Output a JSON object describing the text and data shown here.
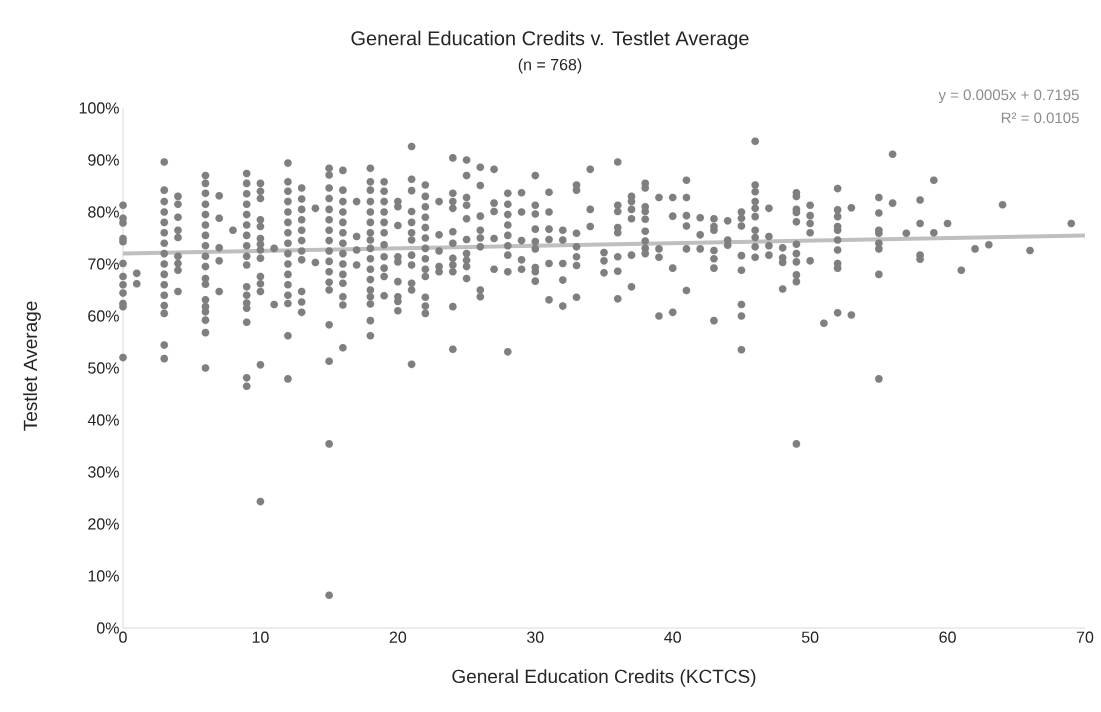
{
  "chart_data": {
    "type": "scatter",
    "title": "General Education Credits v. Testlet Average",
    "subtitle": "(n = 768)",
    "xlabel": "General Education Credits (KCTCS)",
    "ylabel": "Testlet Average",
    "annotations": [
      "y = 0.0005x + 0.7195",
      "R² = 0.0105"
    ],
    "xlim": [
      0,
      70
    ],
    "xticks": [
      0,
      10,
      20,
      30,
      40,
      50,
      60,
      70
    ],
    "ylim": [
      0,
      100
    ],
    "yticks": [
      {
        "value": 0,
        "label": "0%"
      },
      {
        "value": 10,
        "label": "10%"
      },
      {
        "value": 20,
        "label": "20%"
      },
      {
        "value": 30,
        "label": "30%"
      },
      {
        "value": 40,
        "label": "40%"
      },
      {
        "value": 50,
        "label": "50%"
      },
      {
        "value": 60,
        "label": "60%"
      },
      {
        "value": 70,
        "label": "70%"
      },
      {
        "value": 80,
        "label": "80%"
      },
      {
        "value": 90,
        "label": "90%"
      },
      {
        "value": 100,
        "label": "100%"
      }
    ],
    "grid": false,
    "marker": "circle",
    "series": [
      {
        "color": "#7f7f7f",
        "x": [
          0,
          0,
          0,
          0,
          0,
          0,
          0,
          0,
          0,
          0,
          0,
          0,
          1,
          1,
          3,
          3,
          3,
          3,
          3,
          3,
          3,
          3,
          3,
          3,
          3,
          3,
          3,
          3,
          3,
          3,
          4,
          4,
          4,
          4,
          4,
          4,
          4,
          4,
          4,
          6,
          6,
          6,
          6,
          6,
          6,
          6,
          6,
          6,
          6,
          6,
          6,
          6,
          6,
          6,
          6,
          6,
          6,
          7,
          7,
          7,
          7,
          7,
          8,
          9,
          9,
          9,
          9,
          9,
          9,
          9,
          9,
          9,
          9,
          9,
          9,
          9,
          9,
          9,
          9,
          9,
          10,
          10,
          10,
          10,
          10,
          10,
          10,
          10,
          10,
          10,
          10,
          10,
          10,
          10,
          11,
          11,
          12,
          12,
          12,
          12,
          12,
          12,
          12,
          12,
          12,
          12,
          12,
          12,
          12,
          12,
          12,
          12,
          13,
          13,
          13,
          13,
          13,
          13,
          13,
          13,
          13,
          13,
          13,
          14,
          14,
          15,
          15,
          15,
          15,
          15,
          15,
          15,
          15,
          15,
          15,
          15,
          15,
          15,
          15,
          15,
          15,
          15,
          16,
          16,
          16,
          16,
          16,
          16,
          16,
          16,
          16,
          16,
          16,
          16,
          16,
          16,
          17,
          17,
          17,
          17,
          18,
          18,
          18,
          18,
          18,
          18,
          18,
          18,
          18,
          18,
          18,
          18,
          18,
          18,
          18,
          18,
          18,
          19,
          19,
          19,
          19,
          19,
          19,
          19,
          19,
          19,
          19,
          19,
          20,
          20,
          20,
          20,
          20,
          20,
          20,
          20,
          20,
          21,
          21,
          21,
          21,
          21,
          21,
          21,
          21,
          21,
          21,
          21,
          21,
          22,
          22,
          22,
          22,
          22,
          22,
          22,
          22,
          22,
          22,
          22,
          22,
          22,
          23,
          23,
          23,
          23,
          23,
          24,
          24,
          24,
          24,
          24,
          24,
          24,
          24,
          24,
          24,
          24,
          25,
          25,
          25,
          25,
          25,
          25,
          25,
          25,
          25,
          25,
          26,
          26,
          26,
          26,
          26,
          26,
          26,
          26,
          27,
          27,
          27,
          27,
          27,
          28,
          28,
          28,
          28,
          28,
          28,
          28,
          28,
          28,
          29,
          29,
          29,
          29,
          29,
          30,
          30,
          30,
          30,
          30,
          30,
          30,
          30,
          30,
          31,
          31,
          31,
          31,
          31,
          31,
          32,
          32,
          32,
          32,
          32,
          33,
          33,
          33,
          33,
          33,
          33,
          33,
          34,
          34,
          34,
          35,
          35,
          35,
          36,
          36,
          36,
          36,
          36,
          36,
          36,
          36,
          37,
          37,
          37,
          37,
          37,
          37,
          38,
          38,
          38,
          38,
          38,
          38,
          38,
          38,
          38,
          39,
          39,
          39,
          39,
          40,
          40,
          40,
          40,
          41,
          41,
          41,
          41,
          41,
          41,
          42,
          42,
          42,
          43,
          43,
          43,
          43,
          43,
          43,
          43,
          44,
          44,
          44,
          45,
          45,
          45,
          45,
          45,
          45,
          45,
          45,
          46,
          46,
          46,
          46,
          46,
          46,
          46,
          46,
          46,
          46,
          47,
          47,
          47,
          47,
          48,
          48,
          48,
          48,
          49,
          49,
          49,
          49,
          49,
          49,
          49,
          49,
          49,
          49,
          49,
          50,
          50,
          50,
          50,
          50,
          51,
          52,
          52,
          52,
          52,
          52,
          52,
          52,
          52,
          52,
          52,
          53,
          53,
          55,
          55,
          55,
          55,
          55,
          55,
          55,
          55,
          56,
          56,
          57,
          58,
          58,
          58,
          58,
          59,
          59,
          60,
          61,
          62,
          63,
          64,
          66,
          69
        ],
        "values": [
          81.3,
          78.8,
          77.9,
          74.9,
          74.3,
          70.1,
          67.6,
          66,
          64.4,
          62.4,
          61.8,
          52,
          68.2,
          66.2,
          89.6,
          84.2,
          82,
          80,
          78,
          76,
          74,
          72,
          70,
          68,
          66,
          64,
          62,
          60.5,
          54.4,
          51.8,
          83,
          81.5,
          79,
          76.5,
          75.1,
          71.5,
          70.1,
          68.8,
          64.7,
          87,
          85.5,
          83.6,
          81.5,
          79.5,
          77.5,
          75.5,
          73.5,
          71.5,
          69.5,
          67.2,
          66.1,
          63.1,
          61.8,
          60.8,
          59.2,
          56.8,
          50,
          83.1,
          78.8,
          73.1,
          70.6,
          64.7,
          76.5,
          87.4,
          85.5,
          83.5,
          81.5,
          79.5,
          77.5,
          75.5,
          73.5,
          71.5,
          69.8,
          65.6,
          64,
          62.5,
          61.5,
          58.8,
          48.1,
          46.5,
          85.5,
          84,
          82.6,
          78.5,
          77.2,
          74.9,
          73.8,
          72.7,
          71.1,
          67.6,
          66.2,
          64.7,
          50.6,
          24.3,
          73,
          62.2,
          89.4,
          85.8,
          84,
          82,
          80,
          78,
          76,
          74,
          72,
          70,
          68,
          66,
          64,
          62.4,
          56.2,
          47.9,
          84.6,
          82.5,
          80.5,
          78.5,
          76.5,
          74.5,
          72.5,
          70.8,
          64.7,
          62.7,
          60.7,
          80.7,
          70.3,
          88.4,
          87.1,
          84.6,
          82.6,
          80.5,
          78.5,
          76.5,
          74.5,
          72.5,
          70.5,
          68.5,
          66.5,
          65,
          58.3,
          51.3,
          35.4,
          6.3,
          88,
          84.2,
          82,
          80,
          78,
          76,
          74,
          72,
          70,
          68,
          66.3,
          63.7,
          62.1,
          53.9,
          82,
          75.3,
          72.7,
          69.8,
          88.4,
          85.8,
          84.2,
          82,
          80,
          78,
          76,
          74.6,
          73,
          71,
          69,
          67,
          65,
          63.7,
          62.3,
          59.1,
          56.2,
          85.8,
          84,
          82,
          80,
          78,
          76,
          73.7,
          71.4,
          69.2,
          67.6,
          63.9,
          82,
          81,
          77.4,
          71.4,
          70.4,
          66.6,
          63.7,
          62.8,
          61,
          92.6,
          86.3,
          84.1,
          80.1,
          78,
          76,
          74.6,
          71.7,
          69.8,
          66.3,
          65,
          50.7,
          85.2,
          83,
          81,
          79,
          77,
          75,
          73,
          71,
          69,
          67.6,
          63.6,
          61.9,
          60.5,
          82,
          75.6,
          72.5,
          69.5,
          68.5,
          90.4,
          83.6,
          82,
          80.7,
          76.2,
          74,
          71.1,
          69.8,
          68.5,
          61.8,
          53.6,
          90,
          87,
          82.8,
          81.3,
          78.7,
          74.7,
          72,
          70.7,
          69.5,
          67.2,
          88.6,
          85.1,
          79.2,
          76.5,
          75,
          73.3,
          65,
          63.7,
          88.2,
          81.7,
          80.1,
          74.9,
          69,
          83.6,
          81.5,
          79.5,
          77.5,
          75.5,
          73.5,
          71.7,
          68.5,
          53.1,
          83.7,
          80,
          74.5,
          70.8,
          69,
          87,
          81.3,
          79.6,
          76.7,
          74.3,
          72.9,
          69.3,
          68.5,
          66.7,
          83.8,
          80,
          76.7,
          74.7,
          70.1,
          63.1,
          76.5,
          74.6,
          70.1,
          66.9,
          61.9,
          85.2,
          84.2,
          75.9,
          73.3,
          71.4,
          69.7,
          63.6,
          88.2,
          80.5,
          77.2,
          72.2,
          70.6,
          68.3,
          89.6,
          81.3,
          80.1,
          77,
          76,
          71.4,
          68.6,
          63.3,
          83,
          82,
          80.5,
          78.7,
          71.7,
          65.6,
          85.5,
          84.6,
          81,
          80.1,
          78.6,
          76.3,
          74.4,
          73,
          72,
          82.8,
          72.9,
          71.3,
          60,
          82.8,
          79.2,
          69.2,
          60.7,
          86.1,
          82.8,
          79.3,
          77.3,
          72.9,
          64.9,
          78.9,
          75.6,
          72.9,
          78.7,
          77.2,
          76.5,
          72.6,
          71,
          69.2,
          59.1,
          78.3,
          74.6,
          73.6,
          80,
          78.8,
          77.3,
          71.6,
          68.8,
          62.2,
          60,
          53.5,
          93.6,
          85.2,
          83.9,
          82,
          80.7,
          79.1,
          76.5,
          75.1,
          73.3,
          71.3,
          80.7,
          75.3,
          73.5,
          71.7,
          73.1,
          71.2,
          70.3,
          65.2,
          83.7,
          83,
          80.5,
          79.9,
          78.1,
          73.8,
          72,
          70.4,
          67.9,
          66.6,
          35.4,
          81.3,
          79.3,
          77.8,
          76,
          70.6,
          58.6,
          84.5,
          80.4,
          79.1,
          77.2,
          76.5,
          74.6,
          72.7,
          70.1,
          69.2,
          60.6,
          80.8,
          60.2,
          82.8,
          79.8,
          76.5,
          75.9,
          74,
          72.9,
          68,
          47.9,
          91.1,
          81.7,
          75.9,
          82.3,
          77.8,
          71.7,
          70.9,
          86.1,
          76,
          77.8,
          68.8,
          72.9,
          73.7,
          81.4,
          72.6,
          77.8
        ]
      },
      {
        "type": "line",
        "color": "#bfbfbf",
        "marker": "none",
        "x": [
          0,
          70
        ],
        "values": [
          72,
          75.5
        ]
      }
    ]
  }
}
